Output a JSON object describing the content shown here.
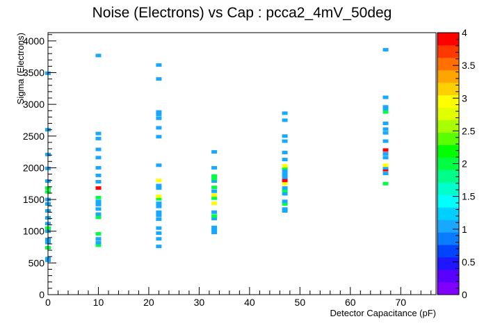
{
  "chart_data": {
    "type": "heatmap",
    "title": "Noise (Electrons) vs Cap : pcca2_4mV_50deg",
    "xlabel": "Detector Capacitance (pF)",
    "ylabel": "Sigma (Electrons)",
    "xlim": [
      0,
      77
    ],
    "ylim": [
      0,
      4130
    ],
    "x_ticks": [
      0,
      10,
      20,
      30,
      40,
      50,
      60,
      70
    ],
    "y_ticks": [
      0,
      500,
      1000,
      1500,
      2000,
      2500,
      3000,
      3500,
      4000
    ],
    "grid": false,
    "legend": "colorbar-right",
    "colorbar": {
      "range": [
        0,
        4
      ],
      "ticks": [
        0,
        0.5,
        1,
        1.5,
        2,
        2.5,
        3,
        3.5,
        4
      ],
      "colors": [
        "#8000ff",
        "#5a00ff",
        "#1f16ff",
        "#0044ff",
        "#0a7cff",
        "#18a8ff",
        "#00d0ff",
        "#00ffff",
        "#00ffcc",
        "#00ff8a",
        "#00ff40",
        "#00ff00",
        "#5aff00",
        "#a8ff00",
        "#e0ff00",
        "#ffff00",
        "#ffd000",
        "#ffa500",
        "#ff7000",
        "#ff3800",
        "#ff0000"
      ]
    },
    "bins": [
      {
        "x": 0,
        "y": 570,
        "v": 1.0
      },
      {
        "x": 0,
        "y": 540,
        "v": 1.0
      },
      {
        "x": 0,
        "y": 740,
        "v": 2.0
      },
      {
        "x": 0,
        "y": 820,
        "v": 1.0
      },
      {
        "x": 0,
        "y": 870,
        "v": 1.0
      },
      {
        "x": 0,
        "y": 1000,
        "v": 1.0
      },
      {
        "x": 0,
        "y": 1050,
        "v": 2.0
      },
      {
        "x": 0,
        "y": 1120,
        "v": 1.0
      },
      {
        "x": 0,
        "y": 1210,
        "v": 1.0
      },
      {
        "x": 0,
        "y": 1320,
        "v": 1.0
      },
      {
        "x": 0,
        "y": 1430,
        "v": 1.0
      },
      {
        "x": 0,
        "y": 1500,
        "v": 1.0
      },
      {
        "x": 0,
        "y": 1620,
        "v": 2.0
      },
      {
        "x": 0,
        "y": 1680,
        "v": 2.0
      },
      {
        "x": 0,
        "y": 1790,
        "v": 1.0
      },
      {
        "x": 0,
        "y": 1990,
        "v": 1.0
      },
      {
        "x": 0,
        "y": 2210,
        "v": 1.0
      },
      {
        "x": 0,
        "y": 2600,
        "v": 1.0
      },
      {
        "x": 0,
        "y": 3490,
        "v": 1.0
      },
      {
        "x": 10,
        "y": 780,
        "v": 2.0
      },
      {
        "x": 10,
        "y": 820,
        "v": 1.0
      },
      {
        "x": 10,
        "y": 880,
        "v": 1.0
      },
      {
        "x": 10,
        "y": 960,
        "v": 2.0
      },
      {
        "x": 10,
        "y": 1220,
        "v": 2.0
      },
      {
        "x": 10,
        "y": 1270,
        "v": 1.0
      },
      {
        "x": 10,
        "y": 1350,
        "v": 1.0
      },
      {
        "x": 10,
        "y": 1420,
        "v": 1.0
      },
      {
        "x": 10,
        "y": 1470,
        "v": 1.0
      },
      {
        "x": 10,
        "y": 1530,
        "v": 2.0
      },
      {
        "x": 10,
        "y": 1680,
        "v": 4.0
      },
      {
        "x": 10,
        "y": 1780,
        "v": 1.0
      },
      {
        "x": 10,
        "y": 1880,
        "v": 1.0
      },
      {
        "x": 10,
        "y": 2000,
        "v": 1.0
      },
      {
        "x": 10,
        "y": 2160,
        "v": 1.0
      },
      {
        "x": 10,
        "y": 2290,
        "v": 1.0
      },
      {
        "x": 10,
        "y": 2460,
        "v": 1.0
      },
      {
        "x": 10,
        "y": 2540,
        "v": 1.0
      },
      {
        "x": 10,
        "y": 3770,
        "v": 1.0
      },
      {
        "x": 22,
        "y": 760,
        "v": 1.0
      },
      {
        "x": 22,
        "y": 880,
        "v": 1.0
      },
      {
        "x": 22,
        "y": 970,
        "v": 1.0
      },
      {
        "x": 22,
        "y": 1050,
        "v": 1.0
      },
      {
        "x": 22,
        "y": 1190,
        "v": 1.0
      },
      {
        "x": 22,
        "y": 1250,
        "v": 1.0
      },
      {
        "x": 22,
        "y": 1300,
        "v": 1.0
      },
      {
        "x": 22,
        "y": 1390,
        "v": 1.0
      },
      {
        "x": 22,
        "y": 1440,
        "v": 1.0
      },
      {
        "x": 22,
        "y": 1510,
        "v": 2.0
      },
      {
        "x": 22,
        "y": 1550,
        "v": 3.0
      },
      {
        "x": 22,
        "y": 1680,
        "v": 1.0
      },
      {
        "x": 22,
        "y": 1720,
        "v": 1.0
      },
      {
        "x": 22,
        "y": 1800,
        "v": 3.0
      },
      {
        "x": 22,
        "y": 2040,
        "v": 1.0
      },
      {
        "x": 22,
        "y": 2490,
        "v": 1.0
      },
      {
        "x": 22,
        "y": 2630,
        "v": 1.0
      },
      {
        "x": 22,
        "y": 2780,
        "v": 1.0
      },
      {
        "x": 22,
        "y": 2840,
        "v": 1.0
      },
      {
        "x": 22,
        "y": 2880,
        "v": 1.0
      },
      {
        "x": 22,
        "y": 3400,
        "v": 1.0
      },
      {
        "x": 22,
        "y": 3620,
        "v": 1.0
      },
      {
        "x": 33,
        "y": 980,
        "v": 1.0
      },
      {
        "x": 33,
        "y": 1030,
        "v": 1.0
      },
      {
        "x": 33,
        "y": 1060,
        "v": 1.0
      },
      {
        "x": 33,
        "y": 1200,
        "v": 1.0
      },
      {
        "x": 33,
        "y": 1240,
        "v": 2.0
      },
      {
        "x": 33,
        "y": 1300,
        "v": 1.0
      },
      {
        "x": 33,
        "y": 1440,
        "v": 3.0
      },
      {
        "x": 33,
        "y": 1520,
        "v": 2.0
      },
      {
        "x": 33,
        "y": 1570,
        "v": 3.0
      },
      {
        "x": 33,
        "y": 1630,
        "v": 1.0
      },
      {
        "x": 33,
        "y": 1690,
        "v": 2.0
      },
      {
        "x": 33,
        "y": 1790,
        "v": 1.0
      },
      {
        "x": 33,
        "y": 1830,
        "v": 2.0
      },
      {
        "x": 33,
        "y": 1870,
        "v": 2.0
      },
      {
        "x": 33,
        "y": 2000,
        "v": 1.0
      },
      {
        "x": 33,
        "y": 2250,
        "v": 1.0
      },
      {
        "x": 47,
        "y": 1320,
        "v": 1.0
      },
      {
        "x": 47,
        "y": 1350,
        "v": 1.0
      },
      {
        "x": 47,
        "y": 1430,
        "v": 2.0
      },
      {
        "x": 47,
        "y": 1470,
        "v": 1.0
      },
      {
        "x": 47,
        "y": 1590,
        "v": 1.0
      },
      {
        "x": 47,
        "y": 1640,
        "v": 2.0
      },
      {
        "x": 47,
        "y": 1680,
        "v": 1.0
      },
      {
        "x": 47,
        "y": 1750,
        "v": 3.0
      },
      {
        "x": 47,
        "y": 1800,
        "v": 4.0
      },
      {
        "x": 47,
        "y": 1850,
        "v": 1.0
      },
      {
        "x": 47,
        "y": 1900,
        "v": 1.0
      },
      {
        "x": 47,
        "y": 1950,
        "v": 1.0
      },
      {
        "x": 47,
        "y": 2000,
        "v": 2.0
      },
      {
        "x": 47,
        "y": 2030,
        "v": 3.0
      },
      {
        "x": 47,
        "y": 2130,
        "v": 1.0
      },
      {
        "x": 47,
        "y": 2240,
        "v": 1.0
      },
      {
        "x": 47,
        "y": 2420,
        "v": 1.0
      },
      {
        "x": 47,
        "y": 2500,
        "v": 1.0
      },
      {
        "x": 47,
        "y": 2750,
        "v": 1.0
      },
      {
        "x": 47,
        "y": 2860,
        "v": 1.0
      },
      {
        "x": 67,
        "y": 1750,
        "v": 2.0
      },
      {
        "x": 67,
        "y": 1910,
        "v": 1.0
      },
      {
        "x": 67,
        "y": 1970,
        "v": 4.0
      },
      {
        "x": 67,
        "y": 2000,
        "v": 1.0
      },
      {
        "x": 67,
        "y": 2040,
        "v": 3.0
      },
      {
        "x": 67,
        "y": 2160,
        "v": 1.0
      },
      {
        "x": 67,
        "y": 2220,
        "v": 1.0
      },
      {
        "x": 67,
        "y": 2280,
        "v": 4.0
      },
      {
        "x": 67,
        "y": 2420,
        "v": 1.0
      },
      {
        "x": 67,
        "y": 2550,
        "v": 1.0
      },
      {
        "x": 67,
        "y": 2610,
        "v": 1.0
      },
      {
        "x": 67,
        "y": 2700,
        "v": 1.0
      },
      {
        "x": 67,
        "y": 2880,
        "v": 2.0
      },
      {
        "x": 67,
        "y": 2930,
        "v": 1.0
      },
      {
        "x": 67,
        "y": 2960,
        "v": 1.0
      },
      {
        "x": 67,
        "y": 3110,
        "v": 1.0
      },
      {
        "x": 67,
        "y": 3860,
        "v": 1.0
      }
    ]
  }
}
